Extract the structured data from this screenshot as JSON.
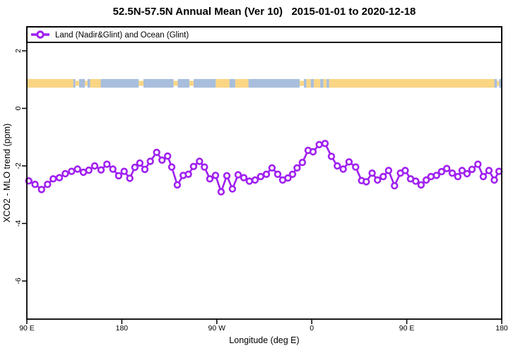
{
  "colors": {
    "series": "#A020F0",
    "land": "#FAD584",
    "ocean": "#A8BEDC",
    "axis": "#000000",
    "background": "#FFFFFF"
  },
  "chart_data": {
    "type": "line",
    "title": "52.5N-57.5N Annual Mean (Ver 10)   2015-01-01 to 2020-12-18",
    "xlabel": "Longitude (deg E)",
    "ylabel": "XCO2 - MLO trend (ppm)",
    "grid": false,
    "legend_position": "top-full-width",
    "xlim": [
      90,
      540
    ],
    "ylim": [
      -7.325,
      2.834
    ],
    "x_axis_note": "longitude axis wraps eastward: 90E > 180 > 90W > 0 > 90E > 180",
    "x_ticks": [
      {
        "value": 90,
        "label": "90 E"
      },
      {
        "value": 180,
        "label": "180"
      },
      {
        "value": 270,
        "label": "90 W"
      },
      {
        "value": 360,
        "label": "0"
      },
      {
        "value": 450,
        "label": "90 E"
      },
      {
        "value": 540,
        "label": "180"
      }
    ],
    "y_ticks": [
      {
        "value": 2,
        "label": "2"
      },
      {
        "value": 0,
        "label": "0"
      },
      {
        "value": -2,
        "label": "-2"
      },
      {
        "value": -4,
        "label": "-4"
      },
      {
        "value": -6,
        "label": "-6"
      }
    ],
    "series": [
      {
        "name": "Land (Nadir&Glint) and Ocean (Glint)",
        "marker": "open-circle",
        "color_key": "series",
        "x": [
          91.8,
          97.8,
          103.9,
          109.6,
          115.0,
          120.8,
          126.4,
          132.4,
          138.0,
          143.6,
          148.7,
          154.3,
          160.3,
          165.9,
          171.5,
          177.0,
          182.2,
          187.6,
          192.4,
          197.1,
          201.8,
          207.0,
          213.0,
          218.1,
          223.4,
          227.3,
          232.6,
          238.2,
          243.1,
          248.0,
          253.6,
          258.3,
          263.4,
          268.8,
          274.1,
          279.5,
          284.8,
          290.2,
          295.6,
          300.9,
          306.3,
          311.6,
          317.0,
          322.3,
          327.7,
          332.4,
          337.4,
          341.8,
          346.1,
          351.1,
          356.5,
          361.2,
          367.0,
          372.6,
          378.6,
          384.2,
          389.8,
          395.3,
          401.6,
          407.2,
          411.6,
          417.2,
          422.3,
          427.7,
          432.8,
          438.4,
          444.0,
          448.5,
          453.6,
          458.5,
          463.6,
          468.5,
          473.0,
          478.2,
          483.0,
          487.9,
          493.1,
          498.4,
          502.4,
          507.1,
          511.8,
          517.4,
          522.5,
          527.9,
          533.0,
          537.4
        ],
        "values": [
          -2.52,
          -2.64,
          -2.82,
          -2.64,
          -2.45,
          -2.41,
          -2.27,
          -2.19,
          -2.11,
          -2.22,
          -2.15,
          -2.0,
          -2.14,
          -1.94,
          -2.11,
          -2.34,
          -2.19,
          -2.43,
          -2.05,
          -1.9,
          -2.12,
          -1.84,
          -1.53,
          -1.8,
          -1.66,
          -2.04,
          -2.66,
          -2.33,
          -2.29,
          -2.02,
          -1.84,
          -2.04,
          -2.45,
          -2.33,
          -2.9,
          -2.34,
          -2.8,
          -2.31,
          -2.41,
          -2.53,
          -2.49,
          -2.37,
          -2.29,
          -2.07,
          -2.29,
          -2.49,
          -2.42,
          -2.29,
          -2.07,
          -1.88,
          -1.46,
          -1.51,
          -1.26,
          -1.22,
          -1.67,
          -2.0,
          -2.11,
          -1.86,
          -2.04,
          -2.51,
          -2.55,
          -2.25,
          -2.49,
          -2.37,
          -2.16,
          -2.69,
          -2.25,
          -2.16,
          -2.45,
          -2.53,
          -2.66,
          -2.49,
          -2.37,
          -2.33,
          -2.2,
          -2.09,
          -2.25,
          -2.37,
          -2.16,
          -2.27,
          -2.12,
          -1.94,
          -2.37,
          -2.16,
          -2.49,
          -2.19
        ]
      }
    ],
    "map_band": {
      "description": "land/ocean surface strip for latitude band 52.5N-57.5N",
      "value_top": 1.02,
      "value_bottom": 0.72,
      "segments": [
        {
          "surface": "land",
          "from": 90,
          "to": 134
        },
        {
          "surface": "ocean",
          "from": 134,
          "to": 136
        },
        {
          "surface": "land",
          "from": 136,
          "to": 139.5,
          "partial": true
        },
        {
          "surface": "ocean",
          "from": 139.5,
          "to": 145
        },
        {
          "surface": "land",
          "from": 145,
          "to": 147.5,
          "partial": true
        },
        {
          "surface": "ocean",
          "from": 147.5,
          "to": 150
        },
        {
          "surface": "land",
          "from": 150,
          "to": 160
        },
        {
          "surface": "ocean",
          "from": 160,
          "to": 196
        },
        {
          "surface": "land",
          "from": 196,
          "to": 200.5,
          "partial": true
        },
        {
          "surface": "ocean",
          "from": 200.5,
          "to": 229
        },
        {
          "surface": "land",
          "from": 229,
          "to": 233,
          "partial": true
        },
        {
          "surface": "ocean",
          "from": 233,
          "to": 244
        },
        {
          "surface": "land",
          "from": 244,
          "to": 248,
          "partial": true
        },
        {
          "surface": "ocean",
          "from": 248,
          "to": 269
        },
        {
          "surface": "land",
          "from": 269,
          "to": 282
        },
        {
          "surface": "ocean",
          "from": 282,
          "to": 287.5
        },
        {
          "surface": "land",
          "from": 287.5,
          "to": 300
        },
        {
          "surface": "ocean",
          "from": 300,
          "to": 348.5
        },
        {
          "surface": "land",
          "from": 348.5,
          "to": 352.5,
          "partial": true
        },
        {
          "surface": "ocean",
          "from": 352.5,
          "to": 355
        },
        {
          "surface": "land",
          "from": 355,
          "to": 359
        },
        {
          "surface": "ocean",
          "from": 359,
          "to": 362
        },
        {
          "surface": "land",
          "from": 362,
          "to": 368
        },
        {
          "surface": "ocean",
          "from": 368,
          "to": 371
        },
        {
          "surface": "land",
          "from": 371,
          "to": 374
        },
        {
          "surface": "ocean",
          "from": 374,
          "to": 376.5
        },
        {
          "surface": "land",
          "from": 376.5,
          "to": 533
        },
        {
          "surface": "ocean",
          "from": 533,
          "to": 535.5
        },
        {
          "surface": "land",
          "from": 535.5,
          "to": 537.5,
          "partial": true
        },
        {
          "surface": "ocean",
          "from": 537.5,
          "to": 540
        }
      ]
    }
  }
}
